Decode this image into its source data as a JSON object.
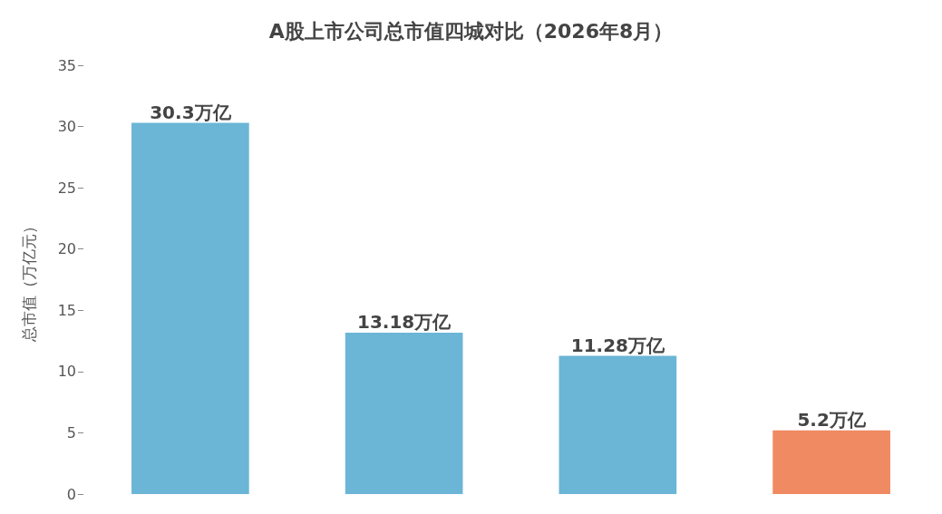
{
  "chart_data": {
    "type": "bar",
    "title": "A股上市公司总市值四城对比（2026年8月）",
    "ylabel": "总市值（万亿元）",
    "categories": [
      null,
      null,
      null,
      null
    ],
    "values": [
      30.3,
      13.18,
      11.28,
      5.2
    ],
    "colors": [
      "#6bb5d6",
      "#6bb5d6",
      "#6bb5d6",
      "#f08a63"
    ],
    "value_labels": [
      "30.3万亿",
      "13.18万亿",
      "11.28万亿",
      "5.2万亿"
    ],
    "ylim": [
      0,
      35
    ],
    "yticks": [
      0,
      5,
      10,
      15,
      20,
      25,
      30,
      35
    ],
    "grid": false
  }
}
